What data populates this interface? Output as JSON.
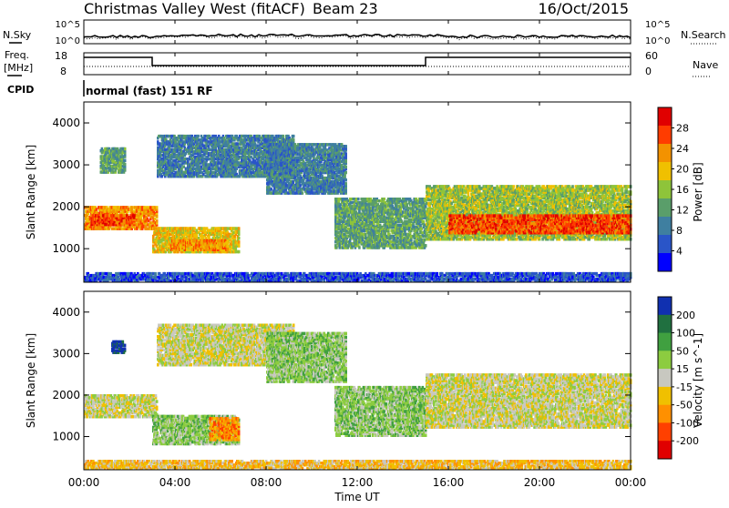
{
  "header": {
    "site": "Christmas Valley West (fitACF)",
    "beam": "Beam 23",
    "date": "16/Oct/2015"
  },
  "noise_panel": {
    "left_label": "N.Sky",
    "right_label": "N.Search",
    "left_ticks": [
      "10^5",
      "10^0"
    ],
    "right_ticks": [
      "10^5",
      "10^0"
    ]
  },
  "freq_panel": {
    "left_label_1": "Freq.",
    "left_label_2": "[MHz]",
    "left_ticks": [
      "18",
      "8"
    ],
    "right_label": "Nave",
    "right_ticks": [
      "60",
      "0"
    ],
    "cpid_label": "CPID",
    "cpid_text": "normal (fast) 151 RF"
  },
  "colors": {
    "power": [
      "#0000ff",
      "#2a55c8",
      "#3f7fa0",
      "#5a9e6a",
      "#8ec43a",
      "#f0c000",
      "#f39200",
      "#ff3c00",
      "#e00000"
    ],
    "velocity": [
      "#e00000",
      "#ff4000",
      "#ff9000",
      "#f0c000",
      "#c8c8c0",
      "#8ccc40",
      "#40a040",
      "#207040",
      "#1030b0"
    ]
  },
  "chart_data": [
    {
      "type": "heatmap",
      "name": "power",
      "ylabel": "Slant Range [km]",
      "yticks": [
        "4000",
        "3000",
        "2000",
        "1000"
      ],
      "colorbar_label": "Power [dB]",
      "colorbar_ticks": [
        "28",
        "24",
        "20",
        "16",
        "12",
        "8",
        "4"
      ],
      "ylim": [
        200,
        4500
      ],
      "xlim": [
        0,
        24
      ],
      "regions": [
        {
          "t0": 0.0,
          "t1": 3.2,
          "r0": 1450,
          "r1": 2000,
          "level": 6
        },
        {
          "t0": 0.3,
          "t1": 2.2,
          "r0": 1550,
          "r1": 1800,
          "level": 7
        },
        {
          "t0": 3.0,
          "t1": 6.8,
          "r0": 900,
          "r1": 1500,
          "level": 5
        },
        {
          "t0": 3.8,
          "t1": 6.3,
          "r0": 950,
          "r1": 1200,
          "level": 6
        },
        {
          "t0": 0.7,
          "t1": 1.8,
          "r0": 2800,
          "r1": 3400,
          "level": 3
        },
        {
          "t0": 3.2,
          "t1": 9.2,
          "r0": 2700,
          "r1": 3700,
          "level": 2
        },
        {
          "t0": 8.0,
          "t1": 11.5,
          "r0": 2300,
          "r1": 3500,
          "level": 2
        },
        {
          "t0": 11.0,
          "t1": 15.0,
          "r0": 1000,
          "r1": 2200,
          "level": 3
        },
        {
          "t0": 15.0,
          "t1": 24.0,
          "r0": 1200,
          "r1": 2500,
          "level": 4
        },
        {
          "t0": 16.0,
          "t1": 24.0,
          "r0": 1350,
          "r1": 1800,
          "level": 7
        },
        {
          "t0": 0.0,
          "t1": 24.0,
          "r0": 200,
          "r1": 420,
          "level": 1
        }
      ]
    },
    {
      "type": "heatmap",
      "name": "velocity",
      "ylabel": "Slant Range [km]",
      "yticks": [
        "4000",
        "3000",
        "2000",
        "1000"
      ],
      "colorbar_label": "Velocity [m s^-1]",
      "colorbar_ticks": [
        "200",
        "100",
        "50",
        "15",
        "-15",
        "-50",
        "-100",
        "-200"
      ],
      "ylim": [
        200,
        4500
      ],
      "xlim": [
        0,
        24
      ],
      "regions": [
        {
          "t0": 0.0,
          "t1": 3.2,
          "r0": 1450,
          "r1": 2000,
          "level": 4
        },
        {
          "t0": 3.0,
          "t1": 6.8,
          "r0": 800,
          "r1": 1500,
          "level": 5
        },
        {
          "t0": 5.5,
          "t1": 6.8,
          "r0": 900,
          "r1": 1450,
          "level": 2
        },
        {
          "t0": 1.2,
          "t1": 1.8,
          "r0": 3000,
          "r1": 3300,
          "level": 8
        },
        {
          "t0": 3.2,
          "t1": 9.2,
          "r0": 2700,
          "r1": 3700,
          "level": 4
        },
        {
          "t0": 8.0,
          "t1": 11.5,
          "r0": 2300,
          "r1": 3500,
          "level": 5
        },
        {
          "t0": 11.0,
          "t1": 15.0,
          "r0": 1000,
          "r1": 2200,
          "level": 5
        },
        {
          "t0": 15.0,
          "t1": 24.0,
          "r0": 1200,
          "r1": 2500,
          "level": 4
        },
        {
          "t0": 0.0,
          "t1": 24.0,
          "r0": 200,
          "r1": 420,
          "level": 3
        }
      ]
    }
  ],
  "xaxis": {
    "label": "Time UT",
    "ticks": [
      "00:00",
      "04:00",
      "08:00",
      "12:00",
      "16:00",
      "20:00",
      "00:00"
    ]
  }
}
